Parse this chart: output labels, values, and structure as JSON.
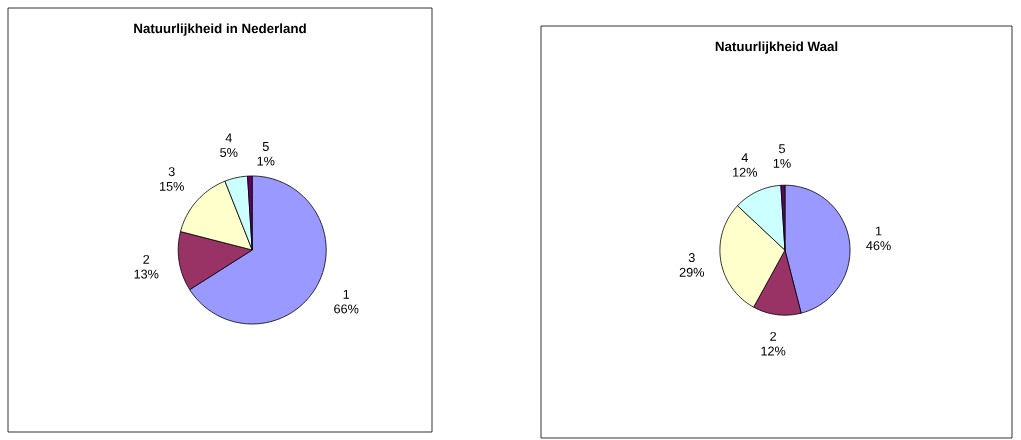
{
  "chart_data": [
    {
      "type": "pie",
      "title": "Natuurlijkheid in Nederland",
      "categories": [
        "1",
        "2",
        "3",
        "4",
        "5"
      ],
      "values": [
        66,
        13,
        15,
        5,
        1
      ],
      "value_labels": [
        "66%",
        "13%",
        "15%",
        "5%",
        "1%"
      ],
      "colors": [
        "#9999ff",
        "#993366",
        "#ffffcc",
        "#ccffff",
        "#660066"
      ]
    },
    {
      "type": "pie",
      "title": "Natuurlijkheid Waal",
      "categories": [
        "1",
        "2",
        "3",
        "4",
        "5"
      ],
      "values": [
        46,
        12,
        29,
        12,
        1
      ],
      "value_labels": [
        "46%",
        "12%",
        "29%",
        "12%",
        "1%"
      ],
      "colors": [
        "#9999ff",
        "#993366",
        "#ffffcc",
        "#ccffff",
        "#660066"
      ]
    }
  ]
}
